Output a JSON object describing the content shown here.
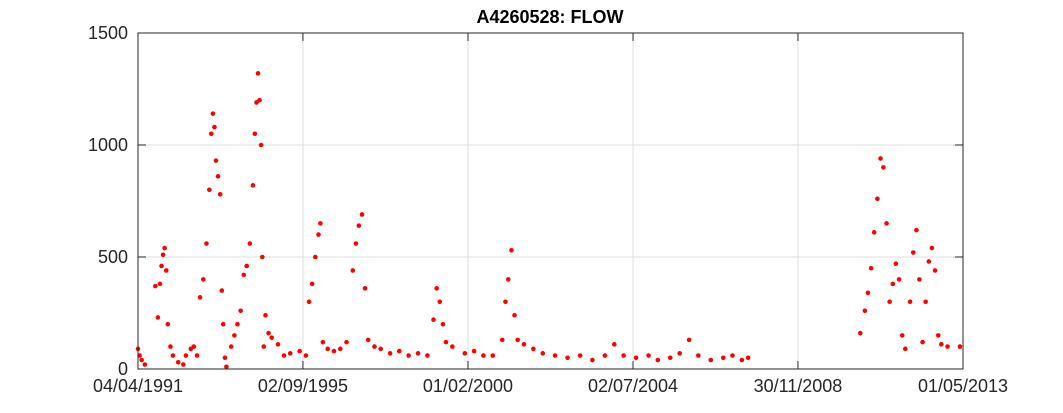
{
  "chart_data": {
    "type": "scatter",
    "title": "A4260528: FLOW",
    "xlabel": "",
    "ylabel": "",
    "xlim": [
      "04/04/1991",
      "01/05/2013"
    ],
    "ylim": [
      0,
      1500
    ],
    "x_ticks": [
      "04/04/1991",
      "02/09/1995",
      "01/02/2000",
      "02/07/2004",
      "30/11/2008",
      "01/05/2013"
    ],
    "y_ticks": [
      0,
      500,
      1000,
      1500
    ],
    "grid": true,
    "marker_color": "#ff0000",
    "series": [
      {
        "points": [
          [
            "1991-04-04",
            90
          ],
          [
            "1991-04-20",
            60
          ],
          [
            "1991-05-10",
            40
          ],
          [
            "1991-06-10",
            20
          ],
          [
            "1991-09-20",
            370
          ],
          [
            "1991-10-15",
            230
          ],
          [
            "1991-11-05",
            380
          ],
          [
            "1991-11-20",
            460
          ],
          [
            "1991-12-05",
            510
          ],
          [
            "1991-12-20",
            540
          ],
          [
            "1992-01-05",
            440
          ],
          [
            "1992-01-20",
            200
          ],
          [
            "1992-02-15",
            100
          ],
          [
            "1992-03-10",
            60
          ],
          [
            "1992-05-01",
            30
          ],
          [
            "1992-06-20",
            20
          ],
          [
            "1992-07-15",
            60
          ],
          [
            "1992-09-01",
            90
          ],
          [
            "1992-10-01",
            100
          ],
          [
            "1992-11-01",
            60
          ],
          [
            "1992-12-01",
            320
          ],
          [
            "1993-01-01",
            400
          ],
          [
            "1993-02-01",
            560
          ],
          [
            "1993-03-01",
            800
          ],
          [
            "1993-03-20",
            1050
          ],
          [
            "1993-04-05",
            1140
          ],
          [
            "1993-04-20",
            1080
          ],
          [
            "1993-05-05",
            930
          ],
          [
            "1993-05-25",
            860
          ],
          [
            "1993-06-15",
            780
          ],
          [
            "1993-07-01",
            350
          ],
          [
            "1993-07-15",
            200
          ],
          [
            "1993-08-01",
            50
          ],
          [
            "1993-08-15",
            10
          ],
          [
            "1993-10-01",
            100
          ],
          [
            "1993-11-01",
            150
          ],
          [
            "1993-12-01",
            200
          ],
          [
            "1994-01-01",
            260
          ],
          [
            "1994-02-01",
            420
          ],
          [
            "1994-03-01",
            460
          ],
          [
            "1994-04-01",
            560
          ],
          [
            "1994-05-01",
            820
          ],
          [
            "1994-05-20",
            1050
          ],
          [
            "1994-06-05",
            1190
          ],
          [
            "1994-06-20",
            1320
          ],
          [
            "1994-07-05",
            1200
          ],
          [
            "1994-07-20",
            1000
          ],
          [
            "1994-08-01",
            500
          ],
          [
            "1994-08-15",
            100
          ],
          [
            "1994-09-01",
            240
          ],
          [
            "1994-10-01",
            160
          ],
          [
            "1994-11-01",
            140
          ],
          [
            "1995-01-01",
            110
          ],
          [
            "1995-03-01",
            60
          ],
          [
            "1995-05-01",
            70
          ],
          [
            "1995-08-01",
            80
          ],
          [
            "1995-10-01",
            60
          ],
          [
            "1995-11-01",
            300
          ],
          [
            "1995-12-01",
            380
          ],
          [
            "1996-01-01",
            500
          ],
          [
            "1996-02-01",
            600
          ],
          [
            "1996-02-20",
            650
          ],
          [
            "1996-03-15",
            120
          ],
          [
            "1996-05-01",
            90
          ],
          [
            "1996-07-01",
            80
          ],
          [
            "1996-09-01",
            90
          ],
          [
            "1996-11-01",
            120
          ],
          [
            "1997-01-01",
            440
          ],
          [
            "1997-02-01",
            560
          ],
          [
            "1997-03-01",
            640
          ],
          [
            "1997-04-01",
            690
          ],
          [
            "1997-05-01",
            360
          ],
          [
            "1997-06-01",
            130
          ],
          [
            "1997-08-01",
            100
          ],
          [
            "1997-10-01",
            90
          ],
          [
            "1998-01-01",
            70
          ],
          [
            "1998-04-01",
            80
          ],
          [
            "1998-07-01",
            60
          ],
          [
            "1998-10-01",
            70
          ],
          [
            "1999-01-01",
            60
          ],
          [
            "1999-03-01",
            220
          ],
          [
            "1999-04-01",
            360
          ],
          [
            "1999-05-01",
            300
          ],
          [
            "1999-06-01",
            200
          ],
          [
            "1999-07-01",
            120
          ],
          [
            "1999-09-01",
            100
          ],
          [
            "2000-01-01",
            70
          ],
          [
            "2000-04-01",
            80
          ],
          [
            "2000-07-01",
            60
          ],
          [
            "2000-10-01",
            60
          ],
          [
            "2001-01-01",
            130
          ],
          [
            "2001-02-01",
            300
          ],
          [
            "2001-03-01",
            400
          ],
          [
            "2001-04-01",
            530
          ],
          [
            "2001-05-01",
            240
          ],
          [
            "2001-06-01",
            130
          ],
          [
            "2001-08-01",
            110
          ],
          [
            "2001-11-01",
            90
          ],
          [
            "2002-02-01",
            70
          ],
          [
            "2002-06-01",
            60
          ],
          [
            "2002-10-01",
            50
          ],
          [
            "2003-02-01",
            60
          ],
          [
            "2003-06-01",
            40
          ],
          [
            "2003-10-01",
            60
          ],
          [
            "2004-01-01",
            110
          ],
          [
            "2004-04-01",
            60
          ],
          [
            "2004-08-01",
            50
          ],
          [
            "2004-12-01",
            60
          ],
          [
            "2005-03-01",
            40
          ],
          [
            "2005-07-01",
            50
          ],
          [
            "2005-10-01",
            70
          ],
          [
            "2006-01-01",
            130
          ],
          [
            "2006-04-01",
            60
          ],
          [
            "2006-08-01",
            40
          ],
          [
            "2006-12-01",
            50
          ],
          [
            "2007-03-01",
            60
          ],
          [
            "2007-06-01",
            40
          ],
          [
            "2007-08-01",
            50
          ],
          [
            "2010-08-01",
            160
          ],
          [
            "2010-09-15",
            260
          ],
          [
            "2010-10-15",
            340
          ],
          [
            "2010-11-15",
            450
          ],
          [
            "2010-12-15",
            610
          ],
          [
            "2011-01-15",
            760
          ],
          [
            "2011-02-15",
            940
          ],
          [
            "2011-03-15",
            900
          ],
          [
            "2011-04-15",
            650
          ],
          [
            "2011-05-15",
            300
          ],
          [
            "2011-06-15",
            380
          ],
          [
            "2011-07-15",
            470
          ],
          [
            "2011-08-15",
            400
          ],
          [
            "2011-09-15",
            150
          ],
          [
            "2011-10-15",
            90
          ],
          [
            "2011-12-01",
            300
          ],
          [
            "2012-01-01",
            520
          ],
          [
            "2012-02-01",
            620
          ],
          [
            "2012-03-01",
            400
          ],
          [
            "2012-04-01",
            120
          ],
          [
            "2012-05-01",
            300
          ],
          [
            "2012-06-01",
            480
          ],
          [
            "2012-07-01",
            540
          ],
          [
            "2012-08-01",
            440
          ],
          [
            "2012-09-01",
            150
          ],
          [
            "2012-10-01",
            110
          ],
          [
            "2012-12-01",
            100
          ],
          [
            "2013-04-01",
            100
          ]
        ]
      }
    ]
  }
}
